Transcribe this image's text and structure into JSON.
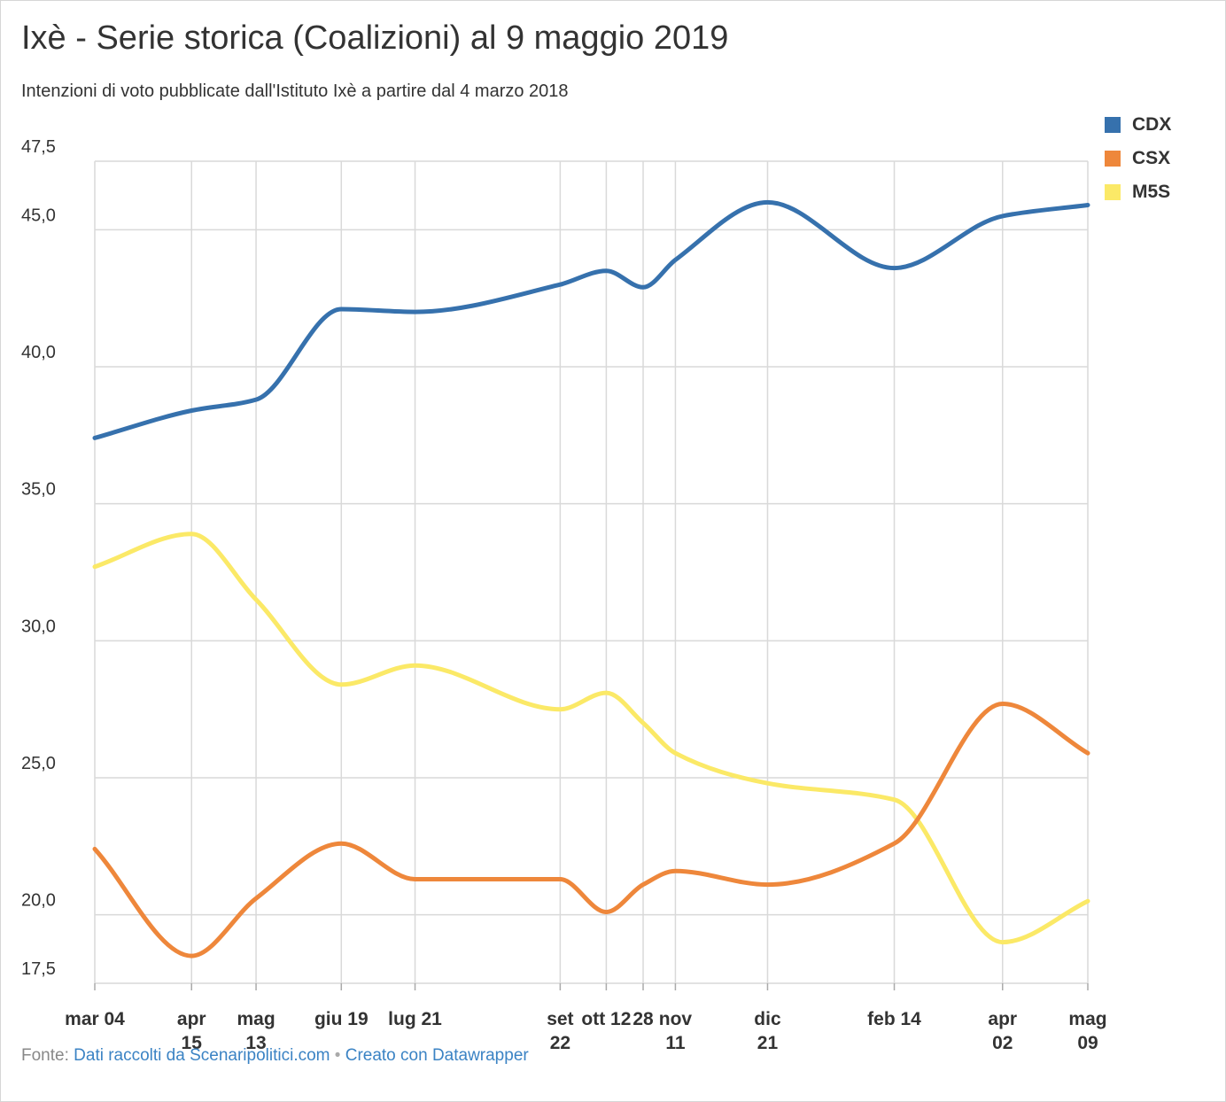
{
  "title": "Ixè - Serie storica (Coalizioni) al 9 maggio 2019",
  "subtitle": "Intenzioni di voto pubblicate dall'Istituto Ixè a partire dal 4 marzo 2018",
  "footer": {
    "prefix": "Fonte:",
    "source_link": "Dati raccolti da Scenaripolitici.com",
    "separator": "•",
    "credit_link": "Creato con Datawrapper"
  },
  "colors": {
    "CDX": "#3671ad",
    "CSX": "#ee873b",
    "M5S": "#fbe967"
  },
  "chart_data": {
    "type": "line",
    "ylim": [
      17.5,
      47.5
    ],
    "y_ticks": [
      "17,5",
      "20,0",
      "25,0",
      "30,0",
      "35,0",
      "40,0",
      "45,0",
      "47,5"
    ],
    "y_tick_values": [
      17.5,
      20,
      25,
      30,
      35,
      40,
      45,
      47.5
    ],
    "x_dates": [
      "2018-03-04",
      "2018-04-15",
      "2018-05-13",
      "2018-06-19",
      "2018-07-21",
      "2018-09-22",
      "2018-10-12",
      "2018-10-28",
      "2018-11-11",
      "2018-12-21",
      "2019-02-14",
      "2019-04-02",
      "2019-05-09"
    ],
    "x_tick_labels": [
      [
        "mar 04"
      ],
      [
        "apr",
        "15"
      ],
      [
        "mag",
        "13"
      ],
      [
        "giu 19"
      ],
      [
        "lug 21"
      ],
      [
        "set",
        "22"
      ],
      [
        "ott 12"
      ],
      [
        "28"
      ],
      [
        "nov",
        "11"
      ],
      [
        "dic",
        "21"
      ],
      [
        "feb 14"
      ],
      [
        "apr",
        "02"
      ],
      [
        "mag",
        "09"
      ]
    ],
    "legend": [
      "CDX",
      "CSX",
      "M5S"
    ],
    "legend_position": "top-right",
    "grid": true,
    "series": [
      {
        "name": "CDX",
        "values": [
          37.4,
          38.4,
          38.8,
          42.1,
          42.0,
          43.0,
          43.5,
          42.9,
          43.9,
          46.0,
          43.6,
          45.5,
          45.9
        ]
      },
      {
        "name": "CSX",
        "values": [
          22.4,
          18.5,
          20.6,
          22.6,
          21.3,
          21.3,
          20.1,
          21.1,
          21.6,
          21.1,
          22.6,
          27.7,
          25.9
        ]
      },
      {
        "name": "M5S",
        "values": [
          32.7,
          33.9,
          31.5,
          28.4,
          29.1,
          27.5,
          28.1,
          27.0,
          25.9,
          24.8,
          24.2,
          19.0,
          20.5
        ]
      }
    ]
  }
}
